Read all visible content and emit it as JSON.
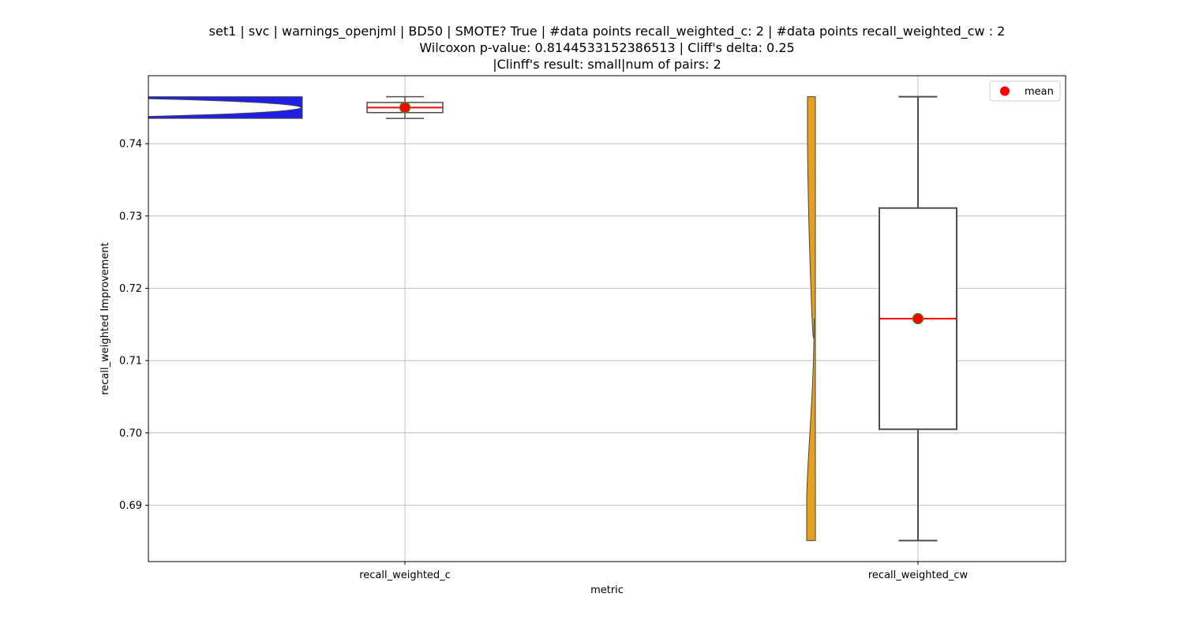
{
  "chart_data": {
    "type": "violin+box",
    "title_lines": [
      "set1 | svc | warnings_openjml | BD50 | SMOTE? True | #data points recall_weighted_c: 2 | #data points recall_weighted_cw : 2",
      "Wilcoxon p-value: 0.8144533152386513 | Cliff's delta: 0.25",
      "|Clinff's result: small|num of pairs: 2"
    ],
    "xlabel": "metric",
    "ylabel": "recall_weighted Improvement",
    "ylim": [
      0.6822,
      0.7494
    ],
    "yticks": [
      0.69,
      0.7,
      0.71,
      0.72,
      0.73,
      0.74
    ],
    "ytick_labels": [
      "0.69",
      "0.70",
      "0.71",
      "0.72",
      "0.73",
      "0.74"
    ],
    "grid": true,
    "legend": {
      "location": "top-right",
      "entries": [
        {
          "label": "mean",
          "color": "#ff0000",
          "marker": "circle"
        }
      ]
    },
    "categories": [
      "recall_weighted_c",
      "recall_weighted_cw"
    ],
    "series": [
      {
        "name": "recall_weighted_c",
        "violin_color": "#1f1fe6",
        "points": [
          0.7435,
          0.7465
        ],
        "box": {
          "whisker_low": 0.7435,
          "q1": 0.7443,
          "median": 0.745,
          "q3": 0.7457,
          "whisker_high": 0.7465
        },
        "mean": 0.745
      },
      {
        "name": "recall_weighted_cw",
        "violin_color": "#e6a020",
        "points": [
          0.6851,
          0.7465
        ],
        "box": {
          "whisker_low": 0.6851,
          "q1": 0.7005,
          "median": 0.7158,
          "q3": 0.7311,
          "whisker_high": 0.7465
        },
        "mean": 0.7158
      }
    ]
  }
}
